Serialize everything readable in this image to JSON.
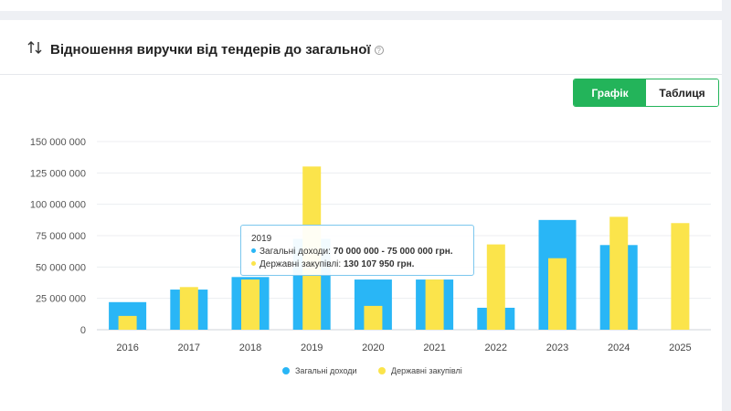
{
  "header": {
    "title": "Відношення виручки від тендерів до загальної",
    "help_icon": "question-circle-icon",
    "sort_icon": "sort-arrows-icon"
  },
  "toggle": {
    "chart_label": "Графік",
    "table_label": "Таблиця",
    "active": "chart"
  },
  "colors": {
    "income": "#29b6f6",
    "procurement": "#fbe44b",
    "accent": "#23b45a"
  },
  "tooltip": {
    "year": "2019",
    "income_label": "Загальні доходи:",
    "income_value": "70 000 000 - 75 000 000 грн.",
    "procurement_label": "Державні закупівлі:",
    "procurement_value": "130 107 950 грн."
  },
  "chart_data": {
    "type": "bar",
    "categories": [
      "2016",
      "2017",
      "2018",
      "2019",
      "2020",
      "2021",
      "2022",
      "2023",
      "2024",
      "2025"
    ],
    "series": [
      {
        "name": "Загальні доходи",
        "values": [
          22000000,
          32000000,
          42000000,
          72500000,
          40000000,
          40000000,
          17500000,
          87500000,
          67500000,
          null
        ]
      },
      {
        "name": "Державні закупівлі",
        "values": [
          11000000,
          34000000,
          40000000,
          130107950,
          19000000,
          40000000,
          68000000,
          57000000,
          90000000,
          85000000
        ]
      }
    ],
    "yticks": [
      "0",
      "25 000 000",
      "50 000 000",
      "75 000 000",
      "100 000 000",
      "125 000 000",
      "150 000 000"
    ],
    "ylim": [
      0,
      150000000
    ],
    "grid": true,
    "legend": "bottom-center"
  }
}
